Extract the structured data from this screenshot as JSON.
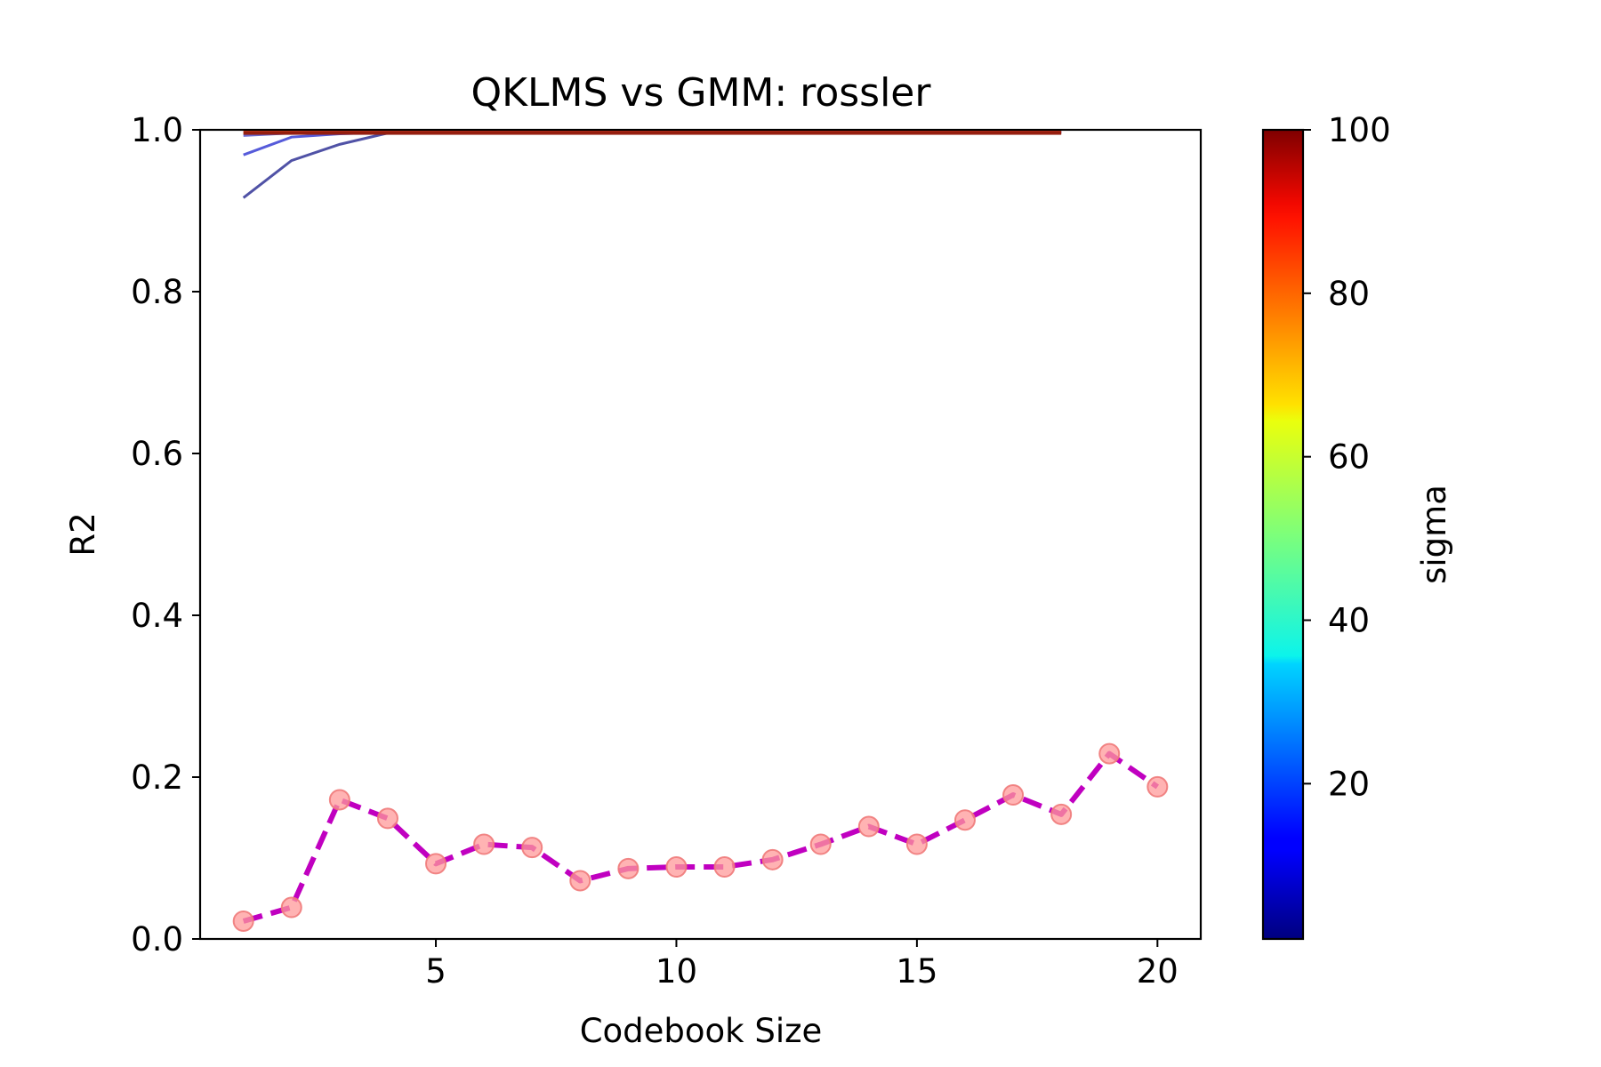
{
  "chart_data": {
    "type": "line",
    "title": "QKLMS vs GMM: rossler",
    "xlabel": "Codebook Size",
    "ylabel": "R2",
    "xlim": [
      0.1,
      20.9
    ],
    "ylim": [
      0.0,
      1.0
    ],
    "x_ticks": [
      5,
      10,
      15,
      20
    ],
    "x_tick_labels": [
      "5",
      "10",
      "15",
      "20"
    ],
    "y_ticks": [
      0.0,
      0.2,
      0.4,
      0.6,
      0.8,
      1.0
    ],
    "y_tick_labels": [
      "0.0",
      "0.2",
      "0.4",
      "0.6",
      "0.8",
      "1.0"
    ],
    "grid": false,
    "colorbar": {
      "label": "sigma",
      "range": [
        1,
        100
      ],
      "ticks": [
        20,
        40,
        60,
        80,
        100
      ],
      "tick_labels": [
        "20",
        "40",
        "60",
        "80",
        "100"
      ],
      "colormap": "jet"
    },
    "qklms_x": [
      1,
      2,
      3,
      4,
      5,
      6,
      7,
      8,
      9,
      10,
      11,
      12,
      13,
      14,
      15,
      16,
      17,
      18
    ],
    "qklms_series": [
      {
        "sigma": 8,
        "color": "#3d3f9c",
        "values": [
          0.916,
          0.962,
          0.982,
          0.996,
          0.997,
          0.997,
          0.997,
          0.997,
          0.997,
          0.997,
          0.997,
          0.997,
          0.997,
          0.997,
          0.997,
          0.997,
          0.997,
          0.997
        ]
      },
      {
        "sigma": 14,
        "color": "#4449d6",
        "values": [
          0.969,
          0.991,
          0.995,
          0.997,
          0.997,
          0.997,
          0.997,
          0.997,
          0.997,
          0.997,
          0.997,
          0.997,
          0.997,
          0.997,
          0.997,
          0.997,
          0.997,
          0.997
        ]
      },
      {
        "sigma": 20,
        "color": "#5a5acc",
        "values": [
          0.993,
          0.996,
          0.997,
          0.997,
          0.997,
          0.997,
          0.997,
          0.997,
          0.997,
          0.997,
          0.997,
          0.997,
          0.997,
          0.997,
          0.997,
          0.997,
          0.997,
          0.997
        ]
      },
      {
        "sigma": 90,
        "color": "#e03a12",
        "values": [
          0.997,
          0.997,
          0.997,
          0.997,
          0.997,
          0.997,
          0.997,
          0.997,
          0.997,
          0.997,
          0.997,
          0.997,
          0.997,
          0.997,
          0.997,
          0.997,
          0.997,
          0.997
        ]
      },
      {
        "sigma": 98,
        "color": "#8f1a0b",
        "values": [
          0.996,
          0.996,
          0.996,
          0.996,
          0.996,
          0.996,
          0.996,
          0.996,
          0.996,
          0.996,
          0.996,
          0.996,
          0.996,
          0.996,
          0.996,
          0.996,
          0.996,
          0.996
        ]
      }
    ],
    "gmm_series": {
      "line_color": "#c000c0",
      "marker_color": "#ff9a9a",
      "x": [
        1,
        2,
        3,
        4,
        5,
        6,
        7,
        8,
        9,
        10,
        11,
        12,
        13,
        14,
        15,
        16,
        17,
        18,
        19,
        20
      ],
      "values": [
        0.022,
        0.039,
        0.172,
        0.149,
        0.093,
        0.117,
        0.113,
        0.072,
        0.087,
        0.089,
        0.089,
        0.098,
        0.117,
        0.139,
        0.117,
        0.147,
        0.178,
        0.154,
        0.229,
        0.188
      ]
    }
  }
}
